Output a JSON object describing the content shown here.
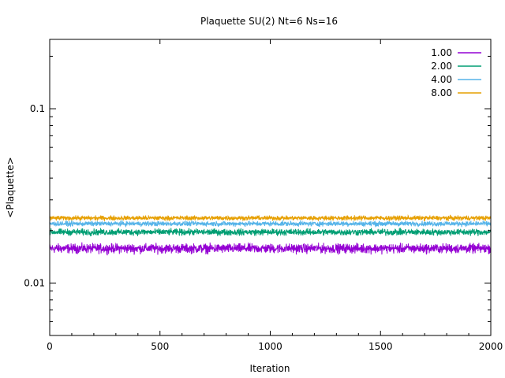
{
  "chart_data": {
    "type": "line",
    "title": "Plaquette SU(2) Nt=6 Ns=16",
    "xlabel": "Iteration",
    "ylabel": "<Plaquette>",
    "xlim": [
      0,
      2000
    ],
    "ylim": [
      0.005,
      0.25
    ],
    "yscale": "log",
    "xticks": [
      0,
      500,
      1000,
      1500,
      2000
    ],
    "xtick_labels": [
      "0",
      "500",
      "1000",
      "1500",
      "2000"
    ],
    "yticks": [
      0.01,
      0.1
    ],
    "ytick_labels": [
      "0.01",
      "0.1"
    ],
    "grid": false,
    "legend_position": "top-right",
    "series": [
      {
        "name": "1.00",
        "color": "#9400d3",
        "mean": 0.0158,
        "noise": 0.0007,
        "x_range": [
          0,
          2000
        ]
      },
      {
        "name": "2.00",
        "color": "#009e73",
        "mean": 0.0196,
        "noise": 0.0006,
        "x_range": [
          0,
          2000
        ]
      },
      {
        "name": "4.00",
        "color": "#56b4e9",
        "mean": 0.0219,
        "noise": 0.0005,
        "x_range": [
          0,
          2000
        ]
      },
      {
        "name": "8.00",
        "color": "#e69f00",
        "mean": 0.0236,
        "noise": 0.0005,
        "x_range": [
          0,
          2000
        ]
      }
    ]
  }
}
